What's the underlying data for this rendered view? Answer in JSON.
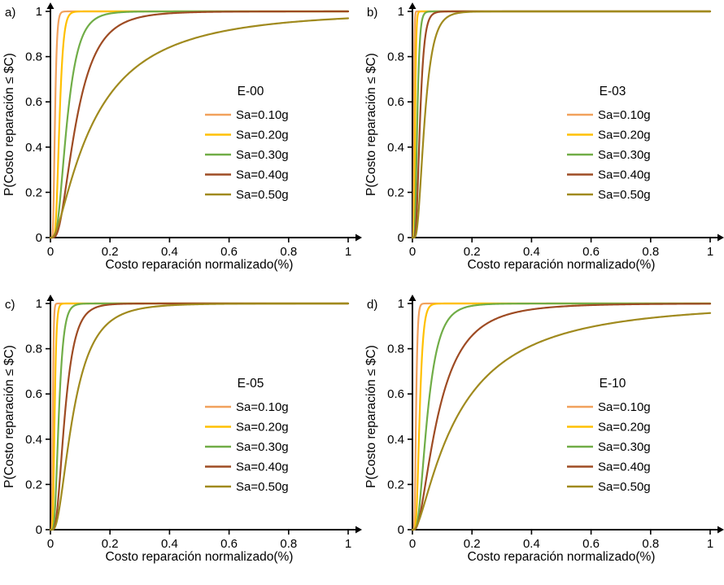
{
  "page": {
    "background": "#ffffff"
  },
  "axes": {
    "xlabel": "Costo reparación normalizado(%)",
    "ylabel": "P(Costo reparación ≤ $C)",
    "xlim": [
      0,
      1
    ],
    "ylim": [
      0,
      1
    ],
    "xticks": [
      0,
      0.2,
      0.4,
      0.6,
      0.8,
      1
    ],
    "yticks": [
      0,
      0.2,
      0.4,
      0.6,
      0.8,
      1
    ],
    "xtick_labels": [
      "0",
      "0.2",
      "0.4",
      "0.6",
      "0.8",
      "1"
    ],
    "ytick_labels": [
      "0",
      "0.2",
      "0.4",
      "0.6",
      "0.8",
      "1"
    ],
    "grid": false,
    "axis_color": "#000000"
  },
  "chart_data": [
    {
      "id": "a",
      "panel_label": "a)",
      "type": "line",
      "legend_title": "E-00",
      "legend_position": "center-right",
      "xlabel": "Costo reparación normalizado(%)",
      "ylabel": "P(Costo reparación ≤ $C)",
      "xlim": [
        0,
        1
      ],
      "ylim": [
        0,
        1
      ],
      "model": "lognormal_cdf",
      "series": [
        {
          "name": "Sa=0.10g",
          "color": "#F1A15C",
          "median": 0.015,
          "beta": 0.35
        },
        {
          "name": "Sa=0.20g",
          "color": "#FFC000",
          "median": 0.03,
          "beta": 0.35
        },
        {
          "name": "Sa=0.30g",
          "color": "#70AD47",
          "median": 0.055,
          "beta": 0.55
        },
        {
          "name": "Sa=0.40g",
          "color": "#9E4B23",
          "median": 0.085,
          "beta": 0.65
        },
        {
          "name": "Sa=0.50g",
          "color": "#A08A1E",
          "median": 0.14,
          "beta": 1.05
        }
      ]
    },
    {
      "id": "b",
      "panel_label": "b)",
      "type": "line",
      "legend_title": "E-03",
      "legend_position": "center-right",
      "xlabel": "Costo reparación normalizado(%)",
      "ylabel": "P(Costo reparación ≤ $C)",
      "xlim": [
        0,
        1
      ],
      "ylim": [
        0,
        1
      ],
      "model": "lognormal_cdf",
      "series": [
        {
          "name": "Sa=0.10g",
          "color": "#F1A15C",
          "median": 0.005,
          "beta": 0.3
        },
        {
          "name": "Sa=0.20g",
          "color": "#FFC000",
          "median": 0.009,
          "beta": 0.32
        },
        {
          "name": "Sa=0.30g",
          "color": "#70AD47",
          "median": 0.016,
          "beta": 0.4
        },
        {
          "name": "Sa=0.40g",
          "color": "#9E4B23",
          "median": 0.025,
          "beta": 0.45
        },
        {
          "name": "Sa=0.50g",
          "color": "#A08A1E",
          "median": 0.04,
          "beta": 0.55
        }
      ]
    },
    {
      "id": "c",
      "panel_label": "c)",
      "type": "line",
      "legend_title": "E-05",
      "legend_position": "center-right",
      "xlabel": "Costo reparación normalizado(%)",
      "ylabel": "P(Costo reparación ≤ $C)",
      "xlim": [
        0,
        1
      ],
      "ylim": [
        0,
        1
      ],
      "model": "lognormal_cdf",
      "series": [
        {
          "name": "Sa=0.10g",
          "color": "#F1A15C",
          "median": 0.008,
          "beta": 0.3
        },
        {
          "name": "Sa=0.20g",
          "color": "#FFC000",
          "median": 0.014,
          "beta": 0.35
        },
        {
          "name": "Sa=0.30g",
          "color": "#70AD47",
          "median": 0.028,
          "beta": 0.45
        },
        {
          "name": "Sa=0.40g",
          "color": "#9E4B23",
          "median": 0.048,
          "beta": 0.55
        },
        {
          "name": "Sa=0.50g",
          "color": "#A08A1E",
          "median": 0.075,
          "beta": 0.7
        }
      ]
    },
    {
      "id": "d",
      "panel_label": "d)",
      "type": "line",
      "legend_title": "E-10",
      "legend_position": "center-right",
      "xlabel": "Costo reparación normalizado(%)",
      "ylabel": "P(Costo reparación ≤ $C)",
      "xlim": [
        0,
        1
      ],
      "ylim": [
        0,
        1
      ],
      "model": "lognormal_cdf",
      "series": [
        {
          "name": "Sa=0.10g",
          "color": "#F1A15C",
          "median": 0.012,
          "beta": 0.35
        },
        {
          "name": "Sa=0.20g",
          "color": "#FFC000",
          "median": 0.024,
          "beta": 0.4
        },
        {
          "name": "Sa=0.30g",
          "color": "#70AD47",
          "median": 0.05,
          "beta": 0.6
        },
        {
          "name": "Sa=0.40g",
          "color": "#9E4B23",
          "median": 0.085,
          "beta": 0.8
        },
        {
          "name": "Sa=0.50g",
          "color": "#A08A1E",
          "median": 0.15,
          "beta": 1.1
        }
      ]
    }
  ]
}
